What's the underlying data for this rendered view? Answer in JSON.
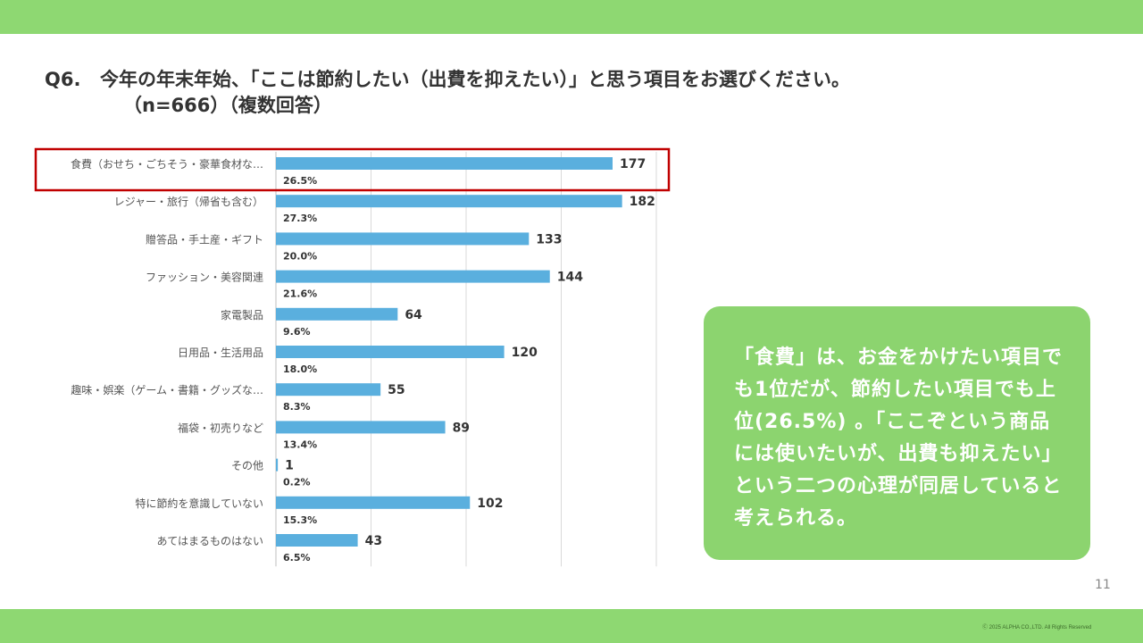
{
  "colors": {
    "band": "#8ED872",
    "bar": "#5AAFDE",
    "highlight_border": "#C00000",
    "callout_bg": "#8CD46F",
    "grid": "#D9D9D9"
  },
  "header": {
    "question_number": "Q6.",
    "question_text": "今年の年末年始、「ここは節約したい（出費を抑えたい）」と思う項目をお選びください。",
    "question_sub": "（n=666）（複数回答）"
  },
  "chart_data": {
    "type": "bar",
    "orientation": "horizontal",
    "categories": [
      "食費（おせち・ごちそう・豪華食材な…",
      "レジャー・旅行（帰省も含む）",
      "贈答品・手土産・ギフト",
      "ファッション・美容関連",
      "家電製品",
      "日用品・生活用品",
      "趣味・娯楽（ゲーム・書籍・グッズな…",
      "福袋・初売りなど",
      "その他",
      "特に節約を意識していない",
      "あてはまるものはない"
    ],
    "values": [
      177,
      182,
      133,
      144,
      64,
      120,
      55,
      89,
      1,
      102,
      43
    ],
    "value_labels": [
      "177",
      "182",
      "133",
      "144",
      "64",
      "120",
      "55",
      "89",
      "1",
      "102",
      "43"
    ],
    "percent_labels": [
      "26.5%",
      "27.3%",
      "20.0%",
      "21.6%",
      "9.6%",
      "18.0%",
      "8.3%",
      "13.4%",
      "0.2%",
      "15.3%",
      "6.5%"
    ],
    "highlighted_category_index": 0,
    "xlim": [
      0,
      200
    ],
    "grid": true,
    "legend": "none"
  },
  "callout": {
    "text": "「食費」は、お金をかけたい項目でも1位だが、節約したい項目でも上位(26.5%) 。「ここぞという商品には使いたいが、出費も抑えたい」という二つの心理が同居していると考えられる。"
  },
  "footer": {
    "page_number": "11",
    "copyright": "Ⓒ 2025 ALPHA CO.,LTD. All Rights Reserved"
  }
}
